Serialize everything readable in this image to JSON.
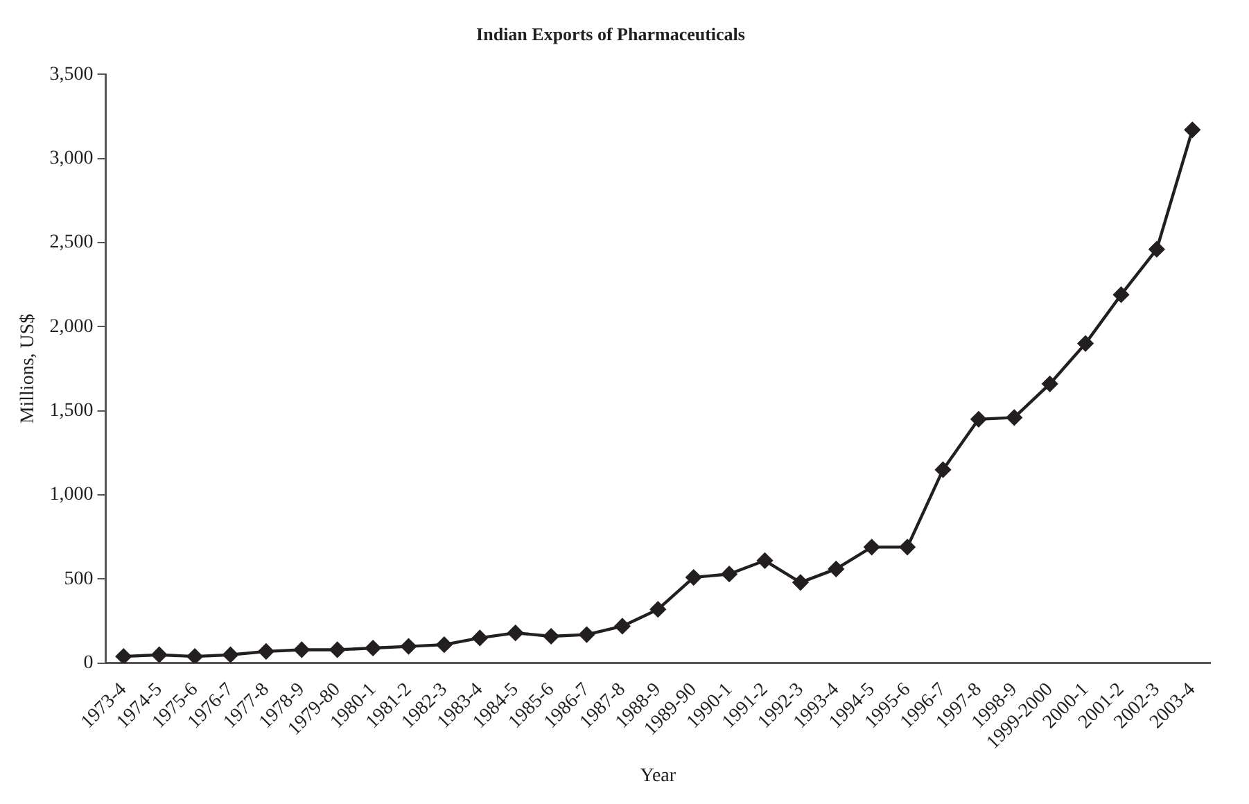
{
  "chart_data": {
    "type": "line",
    "title": "Indian Exports of Pharmaceuticals",
    "xlabel": "Year",
    "ylabel": "Millions, US$",
    "categories": [
      "1973-4",
      "1974-5",
      "1975-6",
      "1976-7",
      "1977-8",
      "1978-9",
      "1979-80",
      "1980-1",
      "1981-2",
      "1982-3",
      "1983-4",
      "1984-5",
      "1985-6",
      "1986-7",
      "1987-8",
      "1988-9",
      "1989-90",
      "1990-1",
      "1991-2",
      "1992-3",
      "1993-4",
      "1994-5",
      "1995-6",
      "1996-7",
      "1997-8",
      "1998-9",
      "1999-2000",
      "2000-1",
      "2001-2",
      "2002-3",
      "2003-4"
    ],
    "series": [
      {
        "color": "#231f20",
        "values": [
          40,
          50,
          40,
          50,
          70,
          80,
          80,
          90,
          100,
          110,
          150,
          180,
          160,
          170,
          220,
          320,
          510,
          530,
          610,
          480,
          560,
          690,
          690,
          1150,
          1450,
          1460,
          1660,
          1900,
          2190,
          2460,
          3170
        ]
      }
    ],
    "ylim": [
      0,
      3500
    ],
    "yticks": [
      {
        "value": 0,
        "label": "0"
      },
      {
        "value": 500,
        "label": "500"
      },
      {
        "value": 1000,
        "label": "1,000"
      },
      {
        "value": 1500,
        "label": "1,500"
      },
      {
        "value": 2000,
        "label": "2,000"
      },
      {
        "value": 2500,
        "label": "2,500"
      },
      {
        "value": 3000,
        "label": "3,000"
      },
      {
        "value": 3500,
        "label": "3,500"
      }
    ],
    "grid": false,
    "legend": false,
    "marker": "diamond",
    "line_style": "solid"
  }
}
